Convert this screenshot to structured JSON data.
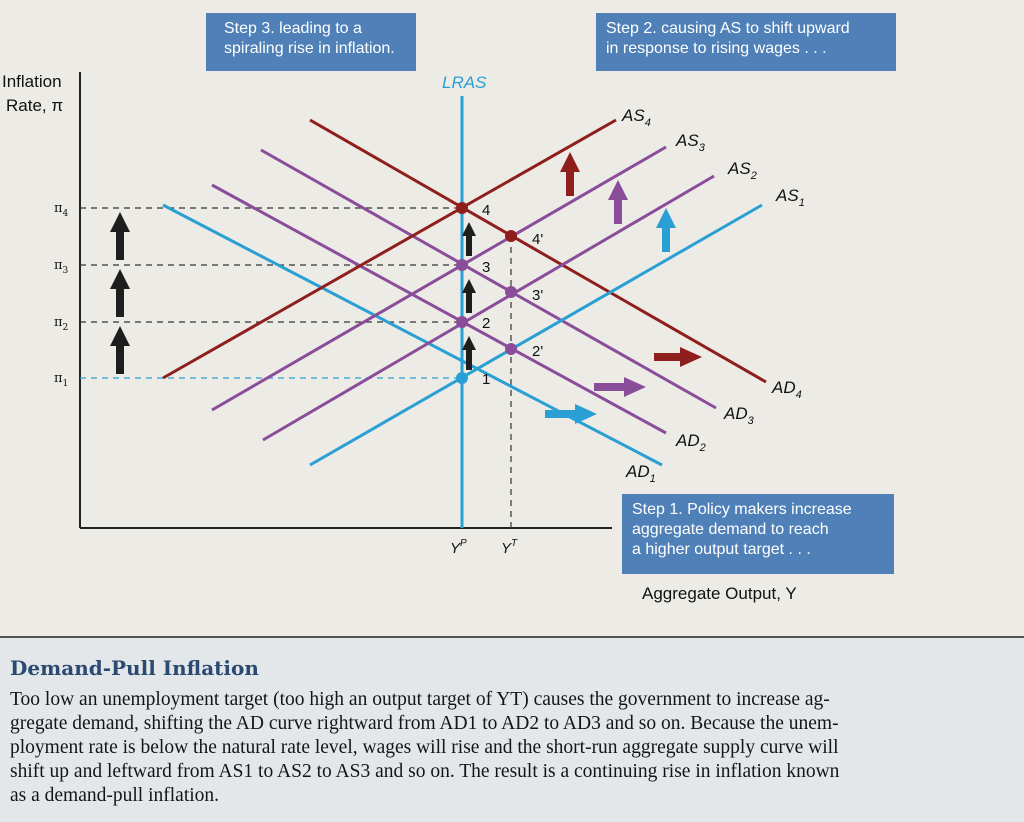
{
  "boxes": {
    "step3": [
      "Step 3. leading to a",
      "spiraling rise in inflation."
    ],
    "step2": [
      "Step 2. causing AS to shift upward",
      "in response to rising wages . . ."
    ],
    "step1": [
      "Step 1. Policy makers increase",
      "aggregate demand to reach",
      "a higher output target . . ."
    ]
  },
  "axes": {
    "y_label_line1": "Inflation",
    "y_label_line2": "Rate, π",
    "x_label": "Aggregate Output, Y"
  },
  "curves": {
    "lras": "LRAS",
    "as": [
      "AS1",
      "AS2",
      "AS3",
      "AS4"
    ],
    "ad": [
      "AD1",
      "AD2",
      "AD3",
      "AD4"
    ]
  },
  "inflation_ticks": [
    "π1",
    "π2",
    "π3",
    "π4"
  ],
  "output_ticks": [
    "YP",
    "YT"
  ],
  "points": [
    "1",
    "2",
    "3",
    "4",
    "2'",
    "3'",
    "4'"
  ],
  "colors": {
    "blue": "#2a9fd3",
    "purple": "#8a4d9a",
    "maroon": "#8e1f1c",
    "box": "#4f80b8",
    "arrow_up": "#1e1e1e"
  },
  "caption": {
    "title": "Demand-Pull Inflation",
    "lines": [
      "Too low an unemployment target (too high an output target of YT) causes the government to increase ag-",
      "gregate demand, shifting the AD curve rightward from AD1 to AD2 to AD3 and so on. Because the unem-",
      "ployment rate is below the natural rate level, wages will rise and the short-run aggregate supply curve will",
      "shift up and leftward from AS1 to AS2 to AS3 and so on. The result is a continuing rise in inflation known",
      "as a demand-pull inflation."
    ]
  }
}
